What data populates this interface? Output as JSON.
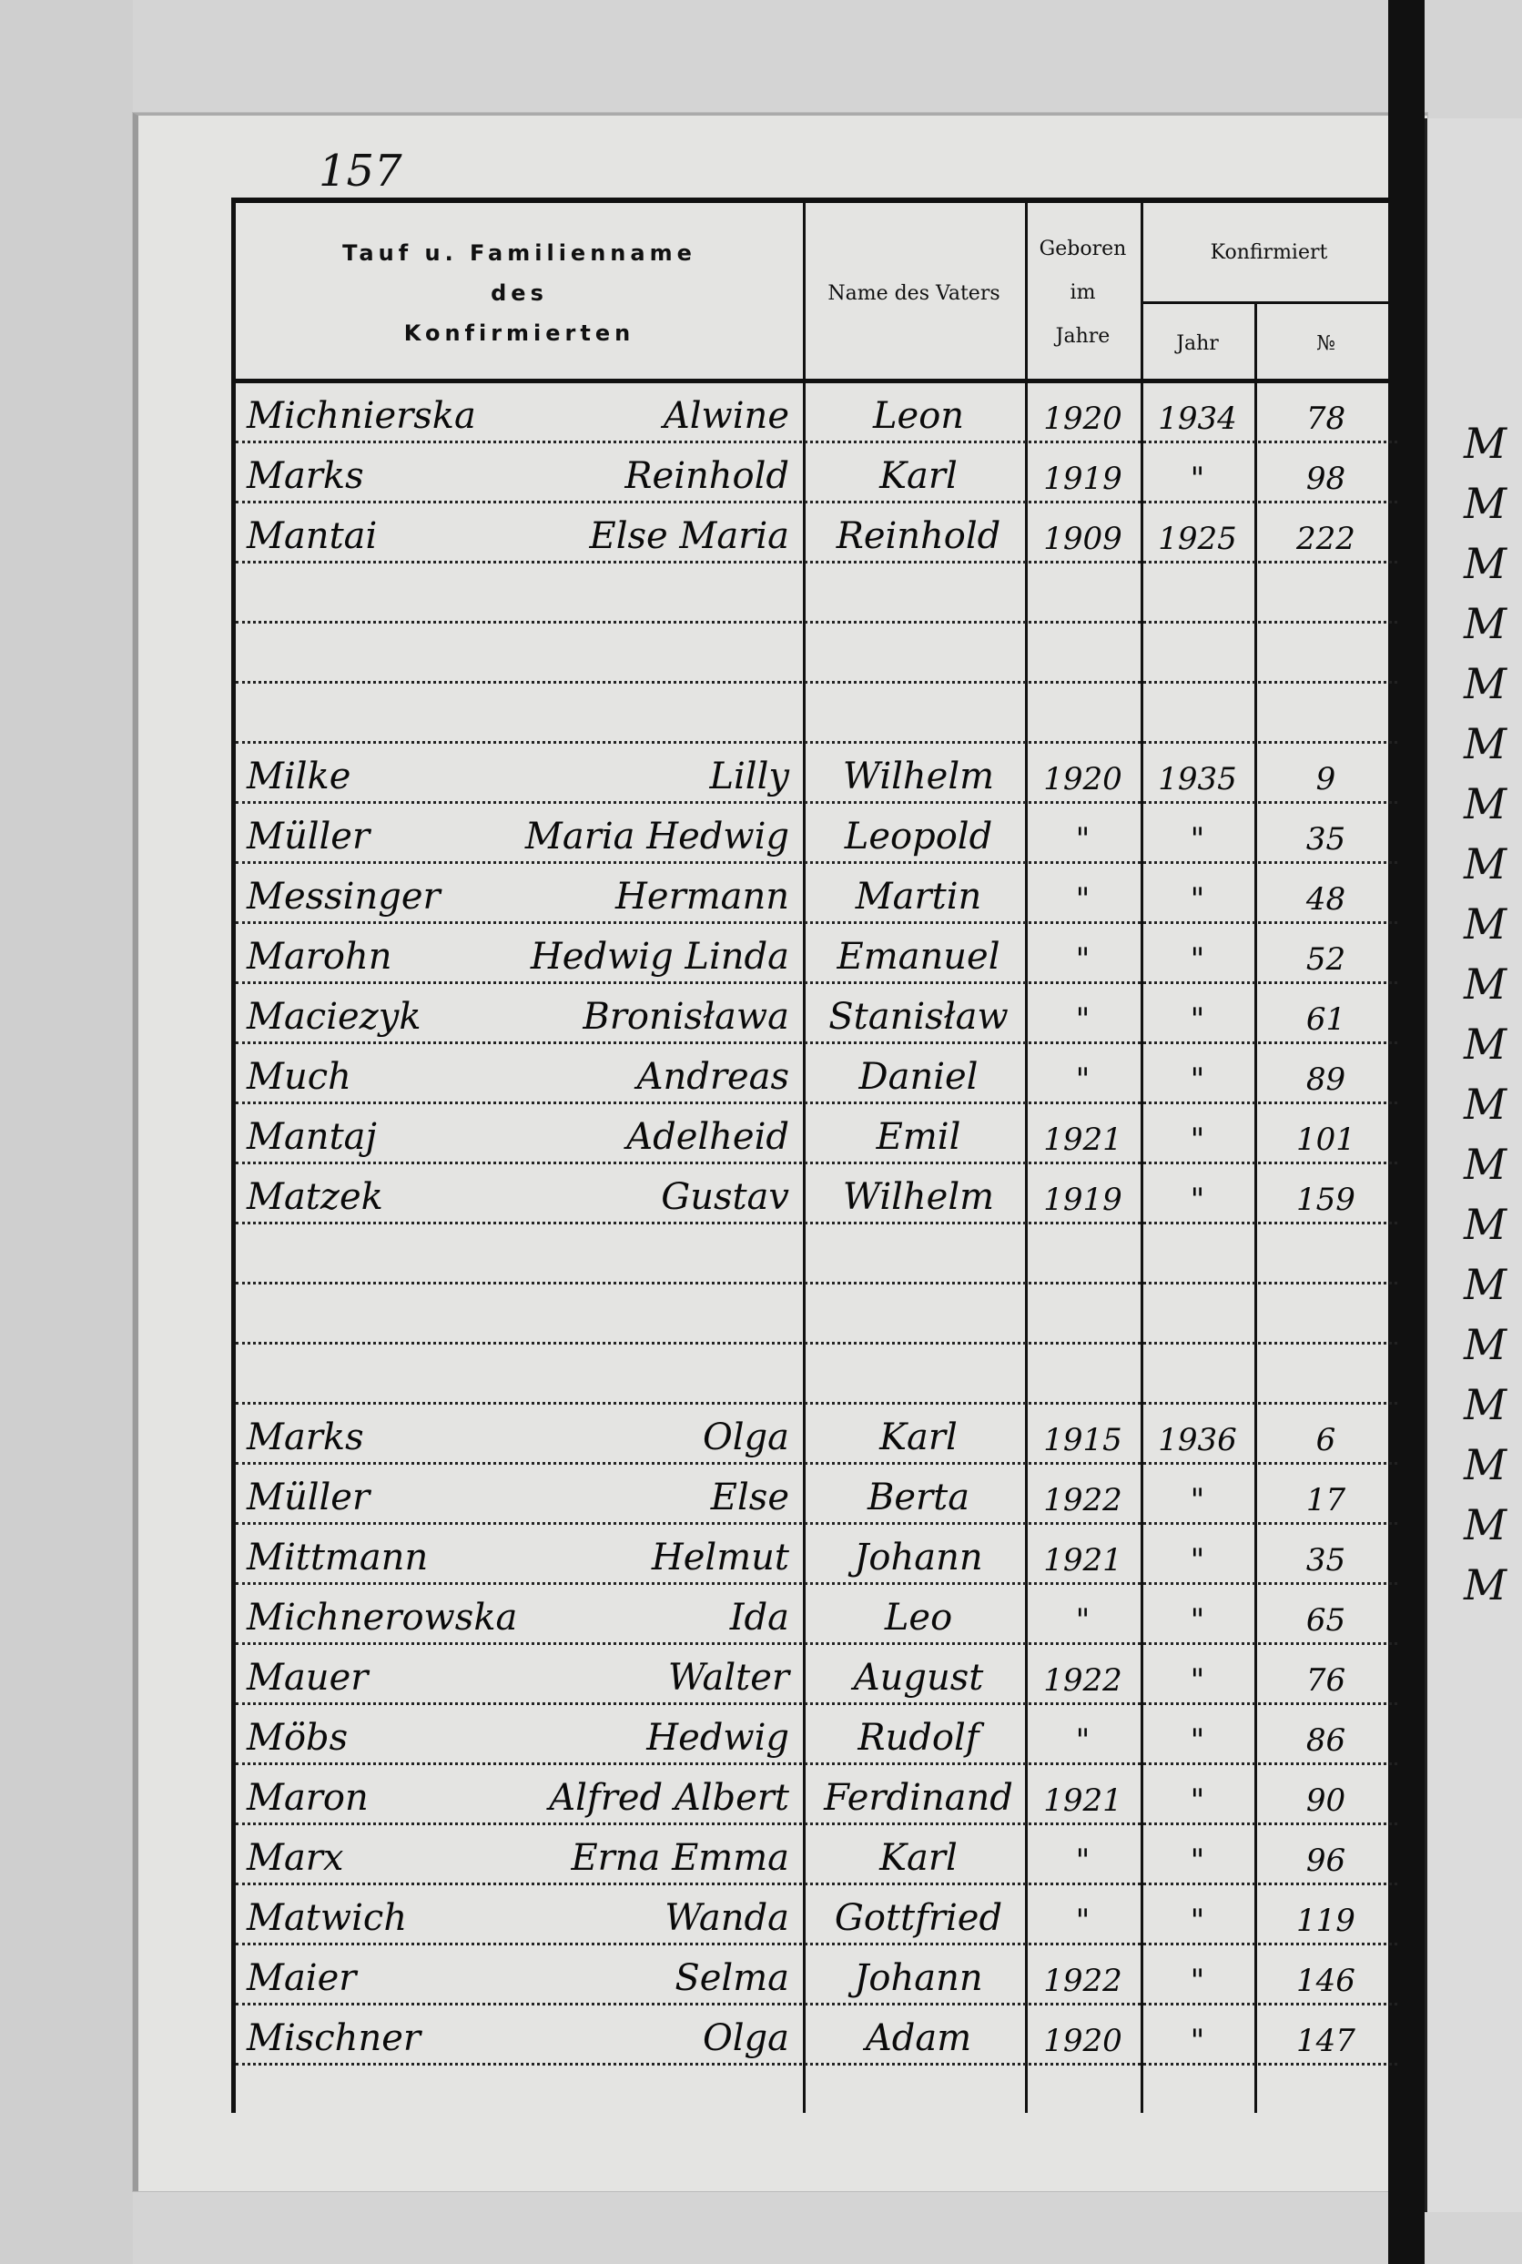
{
  "page_number": "157",
  "header": {
    "col_name": [
      "Tauf u. Familienname",
      "des",
      "Konfirmierten"
    ],
    "col_father": "Name des Vaters",
    "col_born": [
      "Geboren",
      "im",
      "Jahre"
    ],
    "col_confirmed": "Konfirmiert",
    "col_conf_year": "Jahr",
    "col_conf_no": "№"
  },
  "rows": [
    {
      "surname": "Michnierska",
      "given": "Alwine",
      "father": "Leon",
      "born": "1920",
      "year": "1934",
      "no": "78"
    },
    {
      "surname": "Marks",
      "given": "Reinhold",
      "father": "Karl",
      "born": "1919",
      "year": "\"",
      "no": "98"
    },
    {
      "surname": "Mantai",
      "given": "Else Maria",
      "father": "Reinhold",
      "born": "1909",
      "year": "1925",
      "no": "222"
    },
    {},
    {},
    {},
    {
      "surname": "Milke",
      "given": "Lilly",
      "father": "Wilhelm",
      "born": "1920",
      "year": "1935",
      "no": "9"
    },
    {
      "surname": "Müller",
      "given": "Maria Hedwig",
      "father": "Leopold",
      "born": "\"",
      "year": "\"",
      "no": "35"
    },
    {
      "surname": "Messinger",
      "given": "Hermann",
      "father": "Martin",
      "born": "\"",
      "year": "\"",
      "no": "48"
    },
    {
      "surname": "Marohn",
      "given": "Hedwig Linda",
      "father": "Emanuel",
      "born": "\"",
      "year": "\"",
      "no": "52"
    },
    {
      "surname": "Maciezyk",
      "given": "Bronisława",
      "father": "Stanisław",
      "born": "\"",
      "year": "\"",
      "no": "61"
    },
    {
      "surname": "Much",
      "given": "Andreas",
      "father": "Daniel",
      "born": "\"",
      "year": "\"",
      "no": "89"
    },
    {
      "surname": "Mantaj",
      "given": "Adelheid",
      "father": "Emil",
      "born": "1921",
      "year": "\"",
      "no": "101"
    },
    {
      "surname": "Matzek",
      "given": "Gustav",
      "father": "Wilhelm",
      "born": "1919",
      "year": "\"",
      "no": "159"
    },
    {},
    {},
    {},
    {
      "surname": "Marks",
      "given": "Olga",
      "father": "Karl",
      "born": "1915",
      "year": "1936",
      "no": "6"
    },
    {
      "surname": "Müller",
      "given": "Else",
      "father": "Berta",
      "born": "1922",
      "year": "\"",
      "no": "17"
    },
    {
      "surname": "Mittmann",
      "given": "Helmut",
      "father": "Johann",
      "born": "1921",
      "year": "\"",
      "no": "35"
    },
    {
      "surname": "Michnerowska",
      "given": "Ida",
      "father": "Leo",
      "born": "\"",
      "year": "\"",
      "no": "65"
    },
    {
      "surname": "Mauer",
      "given": "Walter",
      "father": "August",
      "born": "1922",
      "year": "\"",
      "no": "76"
    },
    {
      "surname": "Möbs",
      "given": "Hedwig",
      "father": "Rudolf",
      "born": "\"",
      "year": "\"",
      "no": "86"
    },
    {
      "surname": "Maron",
      "given": "Alfred Albert",
      "father": "Ferdinand",
      "born": "1921",
      "year": "\"",
      "no": "90"
    },
    {
      "surname": "Marx",
      "given": "Erna Emma",
      "father": "Karl",
      "born": "\"",
      "year": "\"",
      "no": "96"
    },
    {
      "surname": "Matwich",
      "given": "Wanda",
      "father": "Gottfried",
      "born": "\"",
      "year": "\"",
      "no": "119"
    },
    {
      "surname": "Maier",
      "given": "Selma",
      "father": "Johann",
      "born": "1922",
      "year": "\"",
      "no": "146"
    },
    {
      "surname": "Mischner",
      "given": "Olga",
      "father": "Adam",
      "born": "1920",
      "year": "\"",
      "no": "147"
    }
  ],
  "right_page_fragments": [
    "M",
    "M",
    "M",
    "M",
    "M",
    "M",
    "M",
    "M",
    "M",
    "M",
    "M",
    "M",
    "M",
    "M",
    "M",
    "M",
    "M",
    "M",
    "M",
    "M"
  ]
}
